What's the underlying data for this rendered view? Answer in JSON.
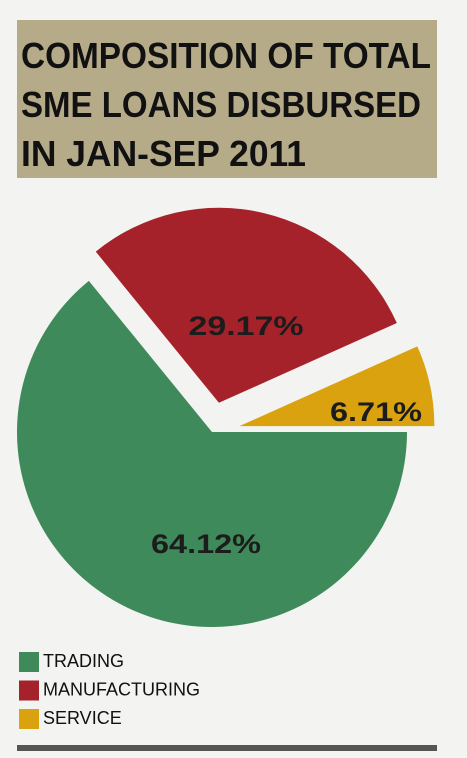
{
  "chart_data": {
    "type": "pie",
    "title": [
      "COMPOSITION OF TOTAL",
      "SME LOANS DISBURSED",
      "IN JAN-SEP 2011"
    ],
    "series": [
      {
        "name": "TRADING",
        "color": "#3f8a5a",
        "values": [
          64.12
        ],
        "value_labels": [
          "64.12%"
        ]
      },
      {
        "name": "MANUFACTURING",
        "color": "#a6222b",
        "values": [
          29.17
        ],
        "value_labels": [
          "29.17%"
        ]
      },
      {
        "name": "SERVICE",
        "color": "#d9a20e",
        "values": [
          6.71
        ],
        "value_labels": [
          "6.71%"
        ]
      }
    ]
  }
}
